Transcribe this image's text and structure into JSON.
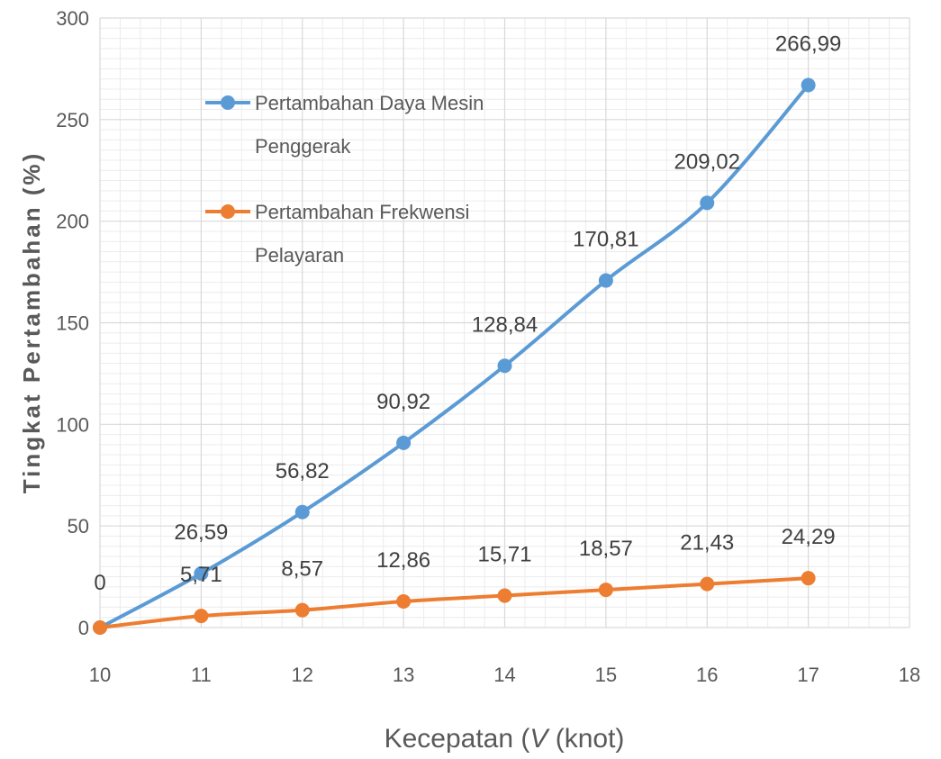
{
  "chart_data": {
    "type": "line",
    "xlabel_parts": [
      "Kecepatan (",
      "V",
      " (knot)"
    ],
    "ylabel": "Tingkat Pertambahan (%)",
    "xlim": [
      10,
      18
    ],
    "ylim": [
      0,
      300
    ],
    "x_ticks": [
      "10",
      "11",
      "12",
      "13",
      "14",
      "15",
      "16",
      "17",
      "18"
    ],
    "y_ticks": [
      "0",
      "50",
      "100",
      "150",
      "200",
      "250",
      "300"
    ],
    "grid": true,
    "legend_position": "top-left",
    "series": [
      {
        "name_lines": [
          "Pertambahan Daya Mesin",
          "Penggerak"
        ],
        "color": "#5B9BD5",
        "x": [
          10,
          11,
          12,
          13,
          14,
          15,
          16,
          17
        ],
        "y": [
          0,
          26.59,
          56.82,
          90.92,
          128.84,
          170.81,
          209.02,
          266.99
        ],
        "labels": [
          "0",
          "26,59",
          "56,82",
          "90,92",
          "128,84",
          "170,81",
          "209,02",
          "266,99"
        ]
      },
      {
        "name_lines": [
          "Pertambahan Frekwensi",
          "Pelayaran"
        ],
        "color": "#ED7D31",
        "x": [
          10,
          11,
          12,
          13,
          14,
          15,
          16,
          17
        ],
        "y": [
          0,
          5.71,
          8.57,
          12.86,
          15.71,
          18.57,
          21.43,
          24.29
        ],
        "labels": [
          "",
          "5,71",
          "8,57",
          "12,86",
          "15,71",
          "18,57",
          "21,43",
          "24,29"
        ]
      }
    ]
  }
}
